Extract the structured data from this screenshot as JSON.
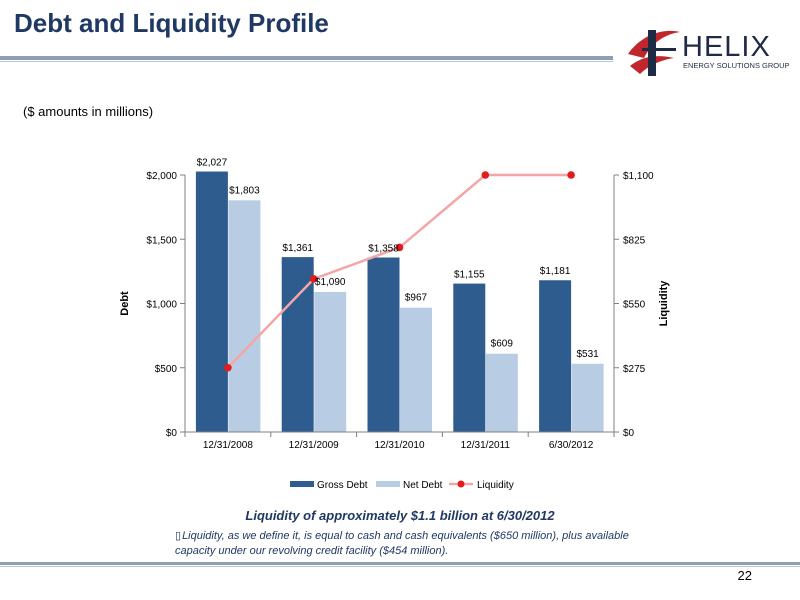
{
  "slide": {
    "title": "Debt and Liquidity Profile",
    "subtitle": "($ amounts in millions)",
    "headline": "Liquidity of approximately $1.1 billion at 6/30/2012",
    "footnote_bullet": "▯",
    "footnote": "Liquidity, as we define it, is equal to cash and cash equivalents ($650 million), plus available capacity under our revolving credit facility ($454 million).",
    "page_number": "22"
  },
  "logo": {
    "name": "HELIX",
    "tagline": "ENERGY SOLUTIONS GROUP",
    "colors": {
      "red": "#c0272d",
      "navy": "#1f2a44"
    }
  },
  "chart_data": {
    "type": "bar",
    "categories": [
      "12/31/2008",
      "12/31/2009",
      "12/31/2010",
      "12/31/2011",
      "6/30/2012"
    ],
    "series": [
      {
        "name": "Gross Debt",
        "type": "bar",
        "axis": "left",
        "color": "#2f5c8f",
        "values": [
          2027,
          1361,
          1358,
          1155,
          1181
        ],
        "labels": [
          "$2,027",
          "$1,361",
          "$1,358",
          "$1,155",
          "$1,181"
        ]
      },
      {
        "name": "Net Debt",
        "type": "bar",
        "axis": "left",
        "color": "#b8cce4",
        "values": [
          1803,
          1090,
          967,
          609,
          531
        ],
        "labels": [
          "$1,803",
          "$1,090",
          "$967",
          "$609",
          "$531"
        ]
      },
      {
        "name": "Liquidity",
        "type": "line",
        "axis": "right",
        "color": "#f4a6a6",
        "marker_color": "#e31b1b",
        "values": [
          275,
          655,
          790,
          1100,
          1100
        ]
      }
    ],
    "ylabel": "Debt",
    "y2label": "Liquidity",
    "ylim": [
      0,
      2000
    ],
    "y2lim": [
      0,
      1100
    ],
    "yticks": [
      0,
      500,
      1000,
      1500,
      2000
    ],
    "yticklabels": [
      "$0",
      "$500",
      "$1,000",
      "$1,500",
      "$2,000"
    ],
    "y2ticks": [
      0,
      275,
      550,
      825,
      1100
    ],
    "y2ticklabels": [
      "$0",
      "$275",
      "$550",
      "$825",
      "$1,100"
    ],
    "grid": false,
    "legend": "bottom"
  }
}
